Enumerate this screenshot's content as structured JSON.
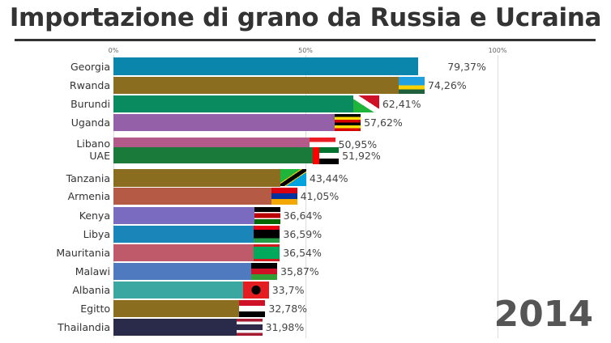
{
  "chart_data": {
    "type": "bar",
    "orientation": "horizontal",
    "title": "Importazione di grano da Russia e Ucraina",
    "xlim": [
      0,
      100
    ],
    "x_ticks": [
      "0%",
      "50%",
      "100%"
    ],
    "grid": true,
    "annotation": "2014",
    "categories": [
      "Georgia",
      "Rwanda",
      "Burundi",
      "Uganda",
      "Libano",
      "UAE",
      "Tanzania",
      "Armenia",
      "Kenya",
      "Libya",
      "Mauritania",
      "Malawi",
      "Albania",
      "Egitto",
      "Thailandia"
    ],
    "values": [
      79.37,
      74.26,
      62.41,
      57.62,
      50.95,
      51.92,
      43.44,
      41.05,
      36.64,
      36.59,
      36.54,
      35.87,
      33.7,
      32.78,
      31.98
    ],
    "value_labels": [
      "79,37%",
      "74,26%",
      "62,41%",
      "57,62%",
      "50,95%",
      "51,92%",
      "43,44%",
      "41,05%",
      "36,64%",
      "36,59%",
      "36,54%",
      "35,87%",
      "33,7%",
      "32,78%",
      "31,98%"
    ],
    "colors": [
      "#0a86ad",
      "#8a6d1e",
      "#0a8a5f",
      "#9460a8",
      "#b45a8a",
      "#1a7a3a",
      "#8a6d1e",
      "#b55a44",
      "#7a6ac0",
      "#1a85b8",
      "#bf5a6a",
      "#4f7ac0",
      "#3aa8a0",
      "#8a6d1e",
      "#2a2a4a"
    ],
    "flags": [
      "georgia-flag-icon",
      "rwanda-flag-icon",
      "burundi-flag-icon",
      "uganda-flag-icon",
      "lebanon-flag-icon",
      "uae-flag-icon",
      "tanzania-flag-icon",
      "armenia-flag-icon",
      "kenya-flag-icon",
      "libya-flag-icon",
      "mauritania-flag-icon",
      "malawi-flag-icon",
      "albania-flag-icon",
      "egypt-flag-icon",
      "thailand-flag-icon"
    ]
  }
}
